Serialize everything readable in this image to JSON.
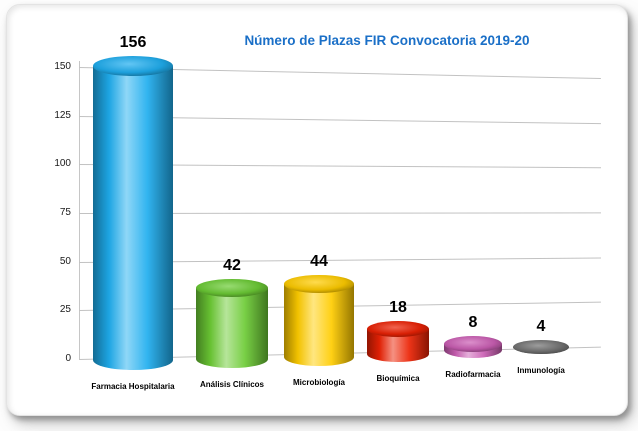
{
  "page": {
    "title": "Número de Plazas FIR Convocatoria 2019-20"
  },
  "chart_data": {
    "type": "bar",
    "subtype": "3d-cylinder",
    "title": "Número de Plazas FIR Convocatoria 2019-20",
    "title_color": "#1a6fc7",
    "categories": [
      "Farmacia Hospitalaria",
      "Análisis Clínicos",
      "Microbiología",
      "Bioquímica",
      "Radiofarmacia",
      "Inmunología"
    ],
    "values": [
      156,
      42,
      44,
      18,
      8,
      4
    ],
    "bar_colors": [
      "#1faeef",
      "#6ccb35",
      "#ffcc00",
      "#eb2204",
      "#cb5fb4",
      "#737373"
    ],
    "xlabel": "",
    "ylabel": "",
    "ylim": [
      0,
      150
    ],
    "yticks": [
      0,
      25,
      50,
      75,
      100,
      125,
      150
    ],
    "grid": true,
    "legend": false
  }
}
